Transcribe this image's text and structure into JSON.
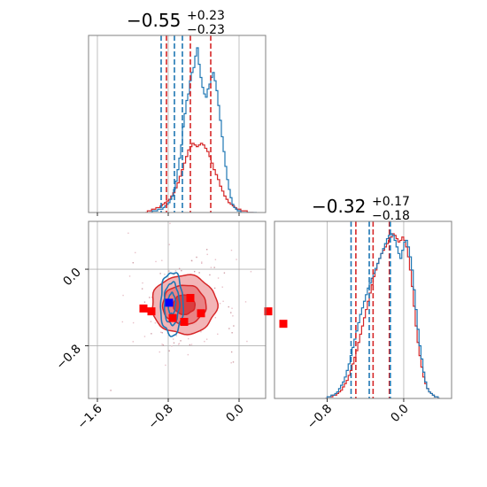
{
  "colors": {
    "blue": "#1f77b4",
    "red": "#d62728",
    "marker_red": "#ff0000",
    "marker_blue": "#0000ff",
    "grid": "#b0b0b0",
    "frame": "#808080"
  },
  "chart_data": {
    "type": "corner",
    "parameters": [
      "p0",
      "p1"
    ],
    "titles": [
      {
        "main": "−0.55",
        "plus": "+0.23",
        "minus": "−0.23"
      },
      {
        "main": "−0.32",
        "plus": "+0.17",
        "minus": "−0.18"
      }
    ],
    "ranges": {
      "p0": [
        -1.7,
        0.3
      ],
      "p1": [
        -1.35,
        0.5
      ]
    },
    "x_ticks": {
      "p0": [
        {
          "value": -1.6,
          "label": "−1.6"
        },
        {
          "value": -0.8,
          "label": "−0.8"
        },
        {
          "value": 0.0,
          "label": "0.0"
        }
      ],
      "p1": [
        {
          "value": -0.8,
          "label": "−0.8"
        },
        {
          "value": 0.0,
          "label": "0.0"
        }
      ]
    },
    "y_ticks": {
      "p1": [
        {
          "value": 0.0,
          "label": "0.0"
        },
        {
          "value": -0.8,
          "label": "−0.8"
        }
      ]
    },
    "grid": true,
    "quantile_lines": {
      "p0": {
        "blue": [
          -0.88,
          -0.73,
          -0.64
        ],
        "red": [
          -0.82,
          -0.55,
          -0.32
        ]
      },
      "p1": {
        "blue": [
          -0.55,
          -0.36,
          -0.14
        ],
        "red": [
          -0.5,
          -0.32,
          -0.15
        ]
      }
    },
    "histograms": {
      "p0": {
        "blue": {
          "x_start": -1.0,
          "bin_width": 0.02,
          "heights": [
            0,
            1,
            1,
            1,
            2,
            2,
            2,
            3,
            4,
            5,
            6,
            8,
            10,
            14,
            19,
            26,
            33,
            41,
            52,
            60,
            68,
            72,
            80,
            85,
            88,
            95,
            100,
            90,
            82,
            76,
            72,
            70,
            75,
            78,
            82,
            85,
            80,
            74,
            65,
            56,
            46,
            37,
            28,
            20,
            14,
            9,
            5,
            3,
            2,
            1,
            1,
            0,
            0,
            0,
            0,
            0,
            0,
            0,
            0,
            0
          ]
        },
        "red": {
          "x_start": -1.06,
          "bin_width": 0.024,
          "heights": [
            0,
            1,
            1,
            2,
            2,
            3,
            3,
            4,
            5,
            6,
            7,
            8,
            10,
            12,
            15,
            18,
            22,
            26,
            30,
            34,
            38,
            40,
            42,
            41,
            40,
            41,
            42,
            41,
            39,
            37,
            34,
            30,
            26,
            23,
            20,
            16,
            13,
            10,
            8,
            6,
            5,
            4,
            3,
            2,
            2,
            1,
            1,
            1,
            0,
            0,
            0
          ]
        }
      },
      "p1": {
        "blue": {
          "x_start": -0.82,
          "bin_width": 0.02,
          "heights": [
            0,
            1,
            1,
            2,
            2,
            3,
            4,
            6,
            8,
            10,
            13,
            17,
            21,
            26,
            31,
            36,
            41,
            46,
            51,
            55,
            59,
            63,
            67,
            70,
            73,
            76,
            79,
            82,
            85,
            88,
            91,
            94,
            97,
            99,
            100,
            99,
            96,
            92,
            88,
            85,
            90,
            95,
            96,
            92,
            86,
            78,
            66,
            54,
            42,
            32,
            24,
            16,
            10,
            6,
            4,
            3,
            2,
            1,
            1,
            0
          ]
        },
        "red": {
          "x_start": -0.82,
          "bin_width": 0.02,
          "heights": [
            0,
            1,
            1,
            1,
            2,
            2,
            3,
            4,
            5,
            7,
            9,
            11,
            14,
            17,
            21,
            25,
            29,
            34,
            39,
            44,
            49,
            54,
            59,
            64,
            69,
            74,
            78,
            82,
            85,
            88,
            90,
            92,
            94,
            96,
            98,
            100,
            99,
            97,
            95,
            96,
            98,
            96,
            92,
            86,
            78,
            68,
            56,
            44,
            34,
            26,
            19,
            13,
            9,
            6,
            4,
            3,
            2,
            1,
            1,
            0
          ]
        }
      }
    },
    "contours_2d": {
      "red": {
        "center": [
          -0.62,
          -0.37
        ],
        "sigma": [
          0.245,
          0.205
        ],
        "levels": [
          0.5,
          1.0,
          1.5
        ]
      },
      "blue": {
        "center": [
          -0.76,
          -0.36
        ],
        "sigma": [
          0.085,
          0.22
        ],
        "levels": [
          0.5,
          1.0,
          1.5
        ]
      }
    },
    "markers": {
      "red": [
        [
          -1.08,
          -0.41
        ],
        [
          -0.55,
          -0.3
        ],
        [
          -0.75,
          -0.51
        ],
        [
          -0.62,
          -0.55
        ],
        [
          -0.43,
          -0.46
        ],
        [
          -0.99,
          -0.44
        ],
        [
          0.33,
          -0.44
        ],
        [
          0.5,
          -0.57
        ]
      ],
      "blue": [
        [
          -0.79,
          -0.35
        ]
      ]
    }
  }
}
